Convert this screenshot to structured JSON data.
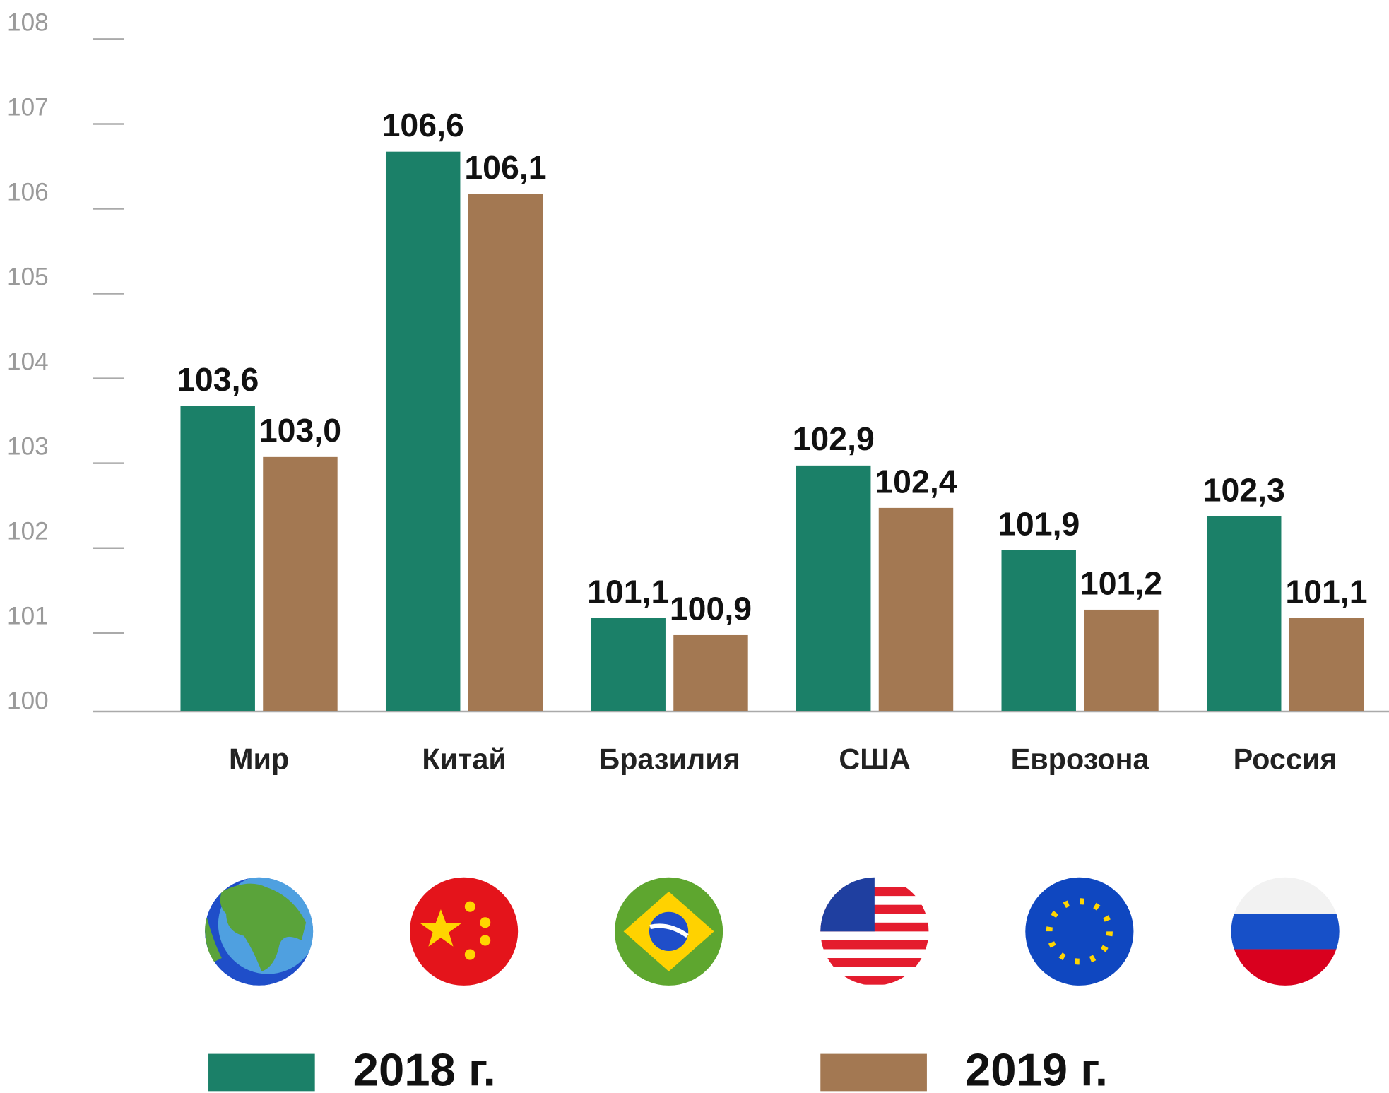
{
  "chart_data": {
    "type": "bar",
    "categories": [
      "Мир",
      "Китай",
      "Бразилия",
      "США",
      "Еврозона",
      "Россия"
    ],
    "series": [
      {
        "name": "2018 г.",
        "color": "#1b8068",
        "values": [
          103.6,
          106.6,
          101.1,
          102.9,
          101.9,
          102.3
        ],
        "value_labels": [
          "103,6",
          "106,6",
          "101,1",
          "102,9",
          "101,9",
          "102,3"
        ]
      },
      {
        "name": "2019 г.",
        "color": "#a37852",
        "values": [
          103.0,
          106.1,
          100.9,
          102.4,
          101.2,
          101.1
        ],
        "value_labels": [
          "103,0",
          "106,1",
          "100,9",
          "102,4",
          "101,2",
          "101,1"
        ]
      }
    ],
    "ylim": [
      100,
      108
    ],
    "yticks": [
      100,
      101,
      102,
      103,
      104,
      105,
      106,
      107,
      108
    ],
    "legend": "bottom"
  }
}
